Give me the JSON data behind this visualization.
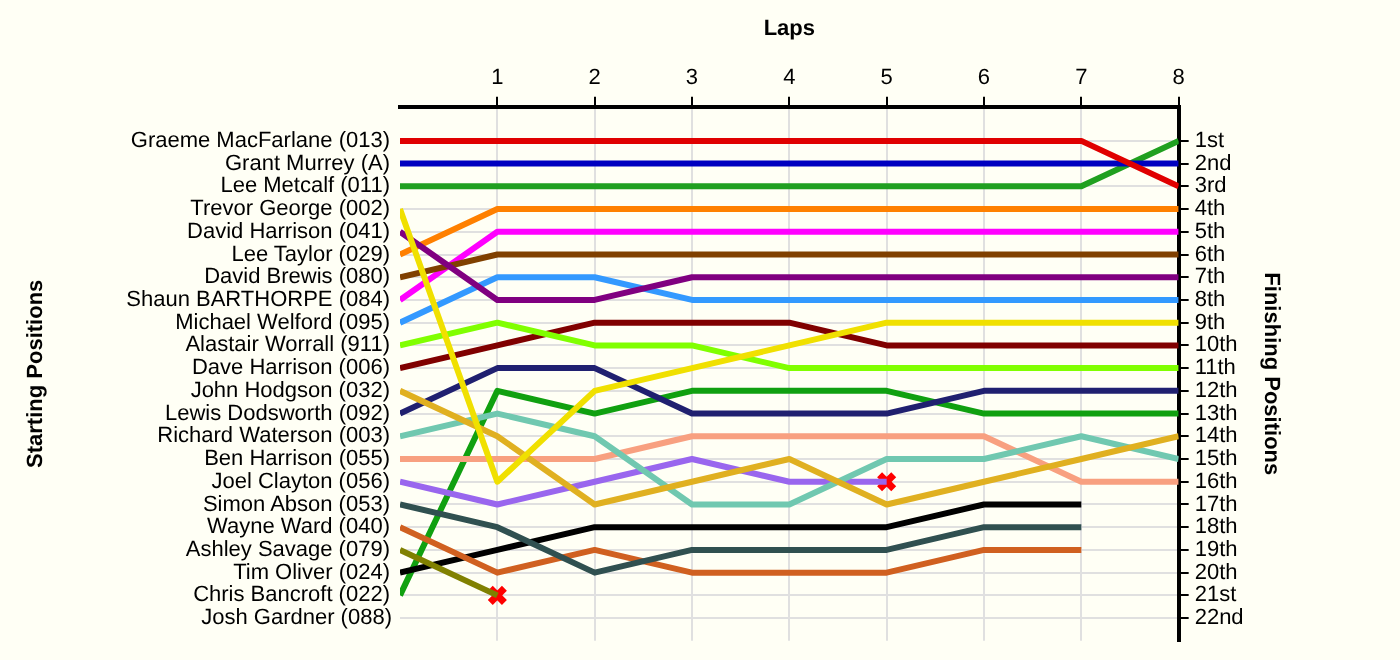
{
  "chart_data": {
    "type": "line",
    "xlabel": "Laps",
    "ylabel": "Finishing Positions",
    "x": [
      0,
      1,
      2,
      3,
      4,
      5,
      6,
      7,
      8
    ],
    "xlim": [
      0,
      8
    ],
    "xticks": [
      1,
      2,
      3,
      4,
      5,
      6,
      7,
      8
    ],
    "ylim": [
      23,
      -0.5
    ],
    "yticks": [
      {
        "value": 1,
        "label": "1st"
      },
      {
        "value": 2,
        "label": "2nd"
      },
      {
        "value": 3,
        "label": "3rd"
      },
      {
        "value": 4,
        "label": "4th"
      },
      {
        "value": 5,
        "label": "5th"
      },
      {
        "value": 6,
        "label": "6th"
      },
      {
        "value": 7,
        "label": "7th"
      },
      {
        "value": 8,
        "label": "8th"
      },
      {
        "value": 9,
        "label": "9th"
      },
      {
        "value": 10,
        "label": "10th"
      },
      {
        "value": 11,
        "label": "11th"
      },
      {
        "value": 12,
        "label": "12th"
      },
      {
        "value": 13,
        "label": "13th"
      },
      {
        "value": 14,
        "label": "14th"
      },
      {
        "value": 15,
        "label": "15th"
      },
      {
        "value": 16,
        "label": "16th"
      },
      {
        "value": 17,
        "label": "17th"
      },
      {
        "value": 18,
        "label": "18th"
      },
      {
        "value": 19,
        "label": "19th"
      },
      {
        "value": 20,
        "label": "20th"
      },
      {
        "value": 21,
        "label": "21st"
      },
      {
        "value": 22,
        "label": "22nd"
      }
    ],
    "annotations": [
      "Starting Positions",
      "Josh Gardner (088)"
    ],
    "grid": true,
    "legend": false,
    "marker": "none",
    "line_style": "solid",
    "series": [
      {
        "name": "Graeme MacFarlane (013)",
        "color": "#e00000",
        "values": [
          1,
          1,
          1,
          1,
          1,
          1,
          1,
          1,
          3
        ]
      },
      {
        "name": "Grant Murrey (A)",
        "color": "#0000c0",
        "values": [
          2,
          2,
          2,
          2,
          2,
          2,
          2,
          2,
          2
        ]
      },
      {
        "name": "Lee Metcalf (011)",
        "color": "#20a020",
        "values": [
          3,
          3,
          3,
          3,
          3,
          3,
          3,
          3,
          1
        ]
      },
      {
        "name": "Trevor George (002)",
        "color": "#f0e000",
        "values": [
          4,
          16,
          12,
          11,
          10,
          9,
          9,
          9,
          9
        ]
      },
      {
        "name": "David Harrison (041)",
        "color": "#800080",
        "values": [
          5,
          8,
          8,
          7,
          7,
          7,
          7,
          7,
          7
        ]
      },
      {
        "name": "Lee Taylor (029)",
        "color": "#ff8000",
        "values": [
          6,
          4,
          4,
          4,
          4,
          4,
          4,
          4,
          4
        ]
      },
      {
        "name": "David Brewis (080)",
        "color": "#804000",
        "values": [
          7,
          6,
          6,
          6,
          6,
          6,
          6,
          6,
          6
        ]
      },
      {
        "name": "Shaun BARTHORPE (084)",
        "color": "#ff00ff",
        "values": [
          8,
          5,
          5,
          5,
          5,
          5,
          5,
          5,
          5
        ]
      },
      {
        "name": "Michael Welford (095)",
        "color": "#3399ff",
        "values": [
          9,
          7,
          7,
          8,
          8,
          8,
          8,
          8,
          8
        ]
      },
      {
        "name": "Alastair Worrall (911)",
        "color": "#80ff00",
        "values": [
          10,
          9,
          10,
          10,
          11,
          11,
          11,
          11,
          11
        ]
      },
      {
        "name": "Dave Harrison (006)",
        "color": "#800000",
        "values": [
          11,
          10,
          9,
          9,
          9,
          10,
          10,
          10,
          10
        ]
      },
      {
        "name": "John Hodgson (032)",
        "color": "#e0b020",
        "values": [
          12,
          14,
          17,
          16,
          15,
          17,
          16,
          15,
          14
        ]
      },
      {
        "name": "Lewis Dodsworth (092)",
        "color": "#202070",
        "values": [
          13,
          11,
          11,
          13,
          13,
          13,
          12,
          12,
          12
        ]
      },
      {
        "name": "Richard Waterson (003)",
        "color": "#70c8b0",
        "values": [
          14,
          13,
          14,
          17,
          17,
          15,
          15,
          14,
          15
        ]
      },
      {
        "name": "Ben Harrison (055)",
        "color": "#f8a080",
        "values": [
          15,
          15,
          15,
          14,
          14,
          14,
          14,
          16,
          16
        ]
      },
      {
        "name": "Joel Clayton (056)",
        "color": "#9966ee",
        "values": [
          16,
          17,
          16,
          15,
          16,
          16,
          null,
          null,
          null
        ]
      },
      {
        "name": "Simon Abson (053)",
        "color": "#305050",
        "values": [
          17,
          18,
          20,
          19,
          19,
          19,
          18,
          18,
          null
        ]
      },
      {
        "name": "Wayne Ward (040)",
        "color": "#d06020",
        "values": [
          18,
          20,
          19,
          20,
          20,
          20,
          19,
          19,
          null
        ]
      },
      {
        "name": "Ashley Savage (079)",
        "color": "#808000",
        "values": [
          19,
          21,
          null,
          null,
          null,
          null,
          null,
          null,
          null
        ]
      },
      {
        "name": "Tim Oliver (024)",
        "color": "#000000",
        "values": [
          20,
          19,
          18,
          18,
          18,
          18,
          17,
          17,
          null
        ]
      },
      {
        "name": "Chris Bancroft (022)",
        "color": "#10a010",
        "values": [
          21,
          12,
          13,
          12,
          12,
          12,
          13,
          13,
          13
        ]
      },
      {
        "type": "scatter",
        "marker": "cross",
        "color": "#ff0000",
        "x": [
          1,
          5
        ],
        "values": [
          21,
          16
        ]
      }
    ]
  }
}
